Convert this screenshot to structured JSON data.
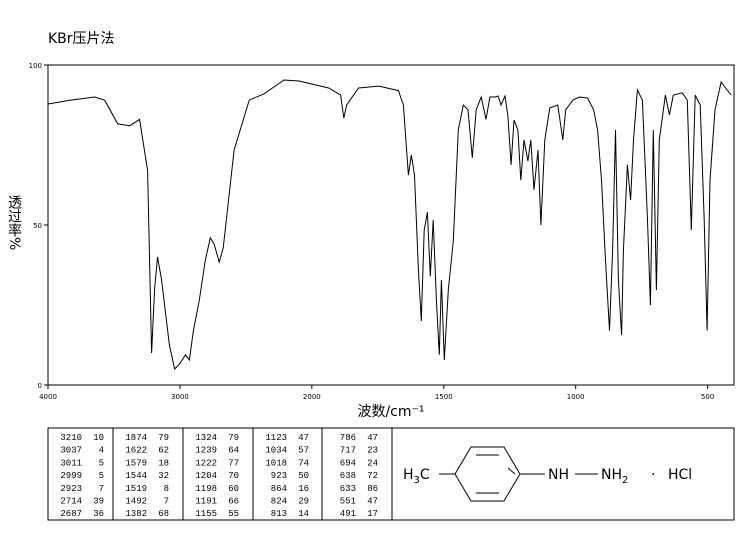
{
  "chart_data": {
    "type": "line",
    "title": "KBr压片法",
    "xlabel": "波数/cm⁻¹",
    "ylabel": "透过率%",
    "xlim": [
      4000,
      400
    ],
    "x_scale_break": 2000,
    "x_scale_factor_below_break": 2,
    "xticks": [
      4000,
      3000,
      2000,
      1500,
      1000,
      500
    ],
    "ylim": [
      0,
      100
    ],
    "yticks": [
      0,
      50,
      100
    ],
    "x": [
      4000,
      3834,
      3645,
      3570,
      3472,
      3381,
      3306,
      3245,
      3215,
      3192,
      3170,
      3140,
      3080,
      3040,
      3004,
      2958,
      2928,
      2898,
      2853,
      2808,
      2770,
      2740,
      2702,
      2672,
      2589,
      2475,
      2362,
      2211,
      2098,
      1936,
      1891,
      1879,
      1868,
      1823,
      1747,
      1672,
      1653,
      1634,
      1623,
      1611,
      1596,
      1585,
      1574,
      1562,
      1551,
      1540,
      1528,
      1517,
      1509,
      1498,
      1483,
      1464,
      1445,
      1426,
      1408,
      1392,
      1377,
      1358,
      1340,
      1325,
      1306,
      1294,
      1283,
      1268,
      1257,
      1245,
      1234,
      1219,
      1208,
      1196,
      1181,
      1170,
      1158,
      1143,
      1132,
      1117,
      1098,
      1068,
      1049,
      1038,
      1011,
      985,
      955,
      932,
      917,
      902,
      887,
      872,
      860,
      849,
      838,
      826,
      819,
      804,
      792,
      781,
      766,
      747,
      728,
      717,
      706,
      694,
      683,
      660,
      645,
      630,
      596,
      577,
      562,
      547,
      528,
      513,
      502,
      491,
      472,
      449,
      426,
      411
    ],
    "series": [
      {
        "color": "#000000",
        "values": [
          87.8,
          89,
          90,
          89,
          81.6,
          81,
          83,
          67,
          10,
          30,
          40,
          33,
          12.5,
          5,
          6.5,
          9.4,
          7.8,
          17,
          26.5,
          39,
          46,
          44,
          38.4,
          42.8,
          73.4,
          89,
          91,
          95.3,
          95,
          92.8,
          90.6,
          83.4,
          87.5,
          92.8,
          93.4,
          92,
          87.5,
          65.6,
          71.9,
          65.6,
          36,
          20,
          48.4,
          54,
          34,
          51.6,
          26.5,
          9.4,
          32.8,
          7.8,
          29.7,
          45,
          79.7,
          87.5,
          86,
          71,
          86,
          90,
          83,
          90,
          90,
          90.3,
          87.5,
          90.3,
          84,
          68.8,
          82.8,
          79.7,
          64,
          76.6,
          70,
          76.6,
          61,
          73.4,
          50,
          76.6,
          86.6,
          87.5,
          76.6,
          86,
          89,
          90,
          89.7,
          86,
          79.7,
          64,
          39,
          17,
          42,
          79.7,
          32.8,
          15.6,
          42,
          68.8,
          57.8,
          76.6,
          92.2,
          89,
          51.6,
          25,
          79.7,
          29.7,
          76.6,
          90.6,
          84.4,
          90.6,
          91.3,
          89,
          48.4,
          90.6,
          87.5,
          51.6,
          17,
          64,
          86,
          94.7,
          92.2,
          90.6
        ]
      }
    ]
  },
  "peak_table": [
    [
      [
        "3210",
        "10"
      ],
      [
        "3037",
        "4"
      ],
      [
        "3011",
        "5"
      ],
      [
        "2999",
        "5"
      ],
      [
        "2923",
        "7"
      ],
      [
        "2714",
        "39"
      ],
      [
        "2687",
        "36"
      ]
    ],
    [
      [
        "1874",
        "79"
      ],
      [
        "1622",
        "62"
      ],
      [
        "1579",
        "18"
      ],
      [
        "1544",
        "32"
      ],
      [
        "1519",
        "8"
      ],
      [
        "1492",
        "7"
      ],
      [
        "1382",
        "68"
      ]
    ],
    [
      [
        "1324",
        "79"
      ],
      [
        "1239",
        "64"
      ],
      [
        "1222",
        "77"
      ],
      [
        "1204",
        "70"
      ],
      [
        "1198",
        "60"
      ],
      [
        "1191",
        "66"
      ],
      [
        "1155",
        "55"
      ]
    ],
    [
      [
        "1123",
        "47"
      ],
      [
        "1034",
        "57"
      ],
      [
        "1018",
        "74"
      ],
      [
        "923",
        "50"
      ],
      [
        "864",
        "16"
      ],
      [
        "824",
        "29"
      ],
      [
        "813",
        "14"
      ]
    ],
    [
      [
        "786",
        "47"
      ],
      [
        "717",
        "23"
      ],
      [
        "694",
        "24"
      ],
      [
        "638",
        "72"
      ],
      [
        "633",
        "86"
      ],
      [
        "551",
        "47"
      ],
      [
        "491",
        "17"
      ]
    ]
  ],
  "structure": {
    "methyl": [
      "H",
      "3",
      "C"
    ],
    "amine": "NH",
    "amine2": [
      "NH",
      "2"
    ],
    "dot": "·",
    "salt": "HCl"
  }
}
